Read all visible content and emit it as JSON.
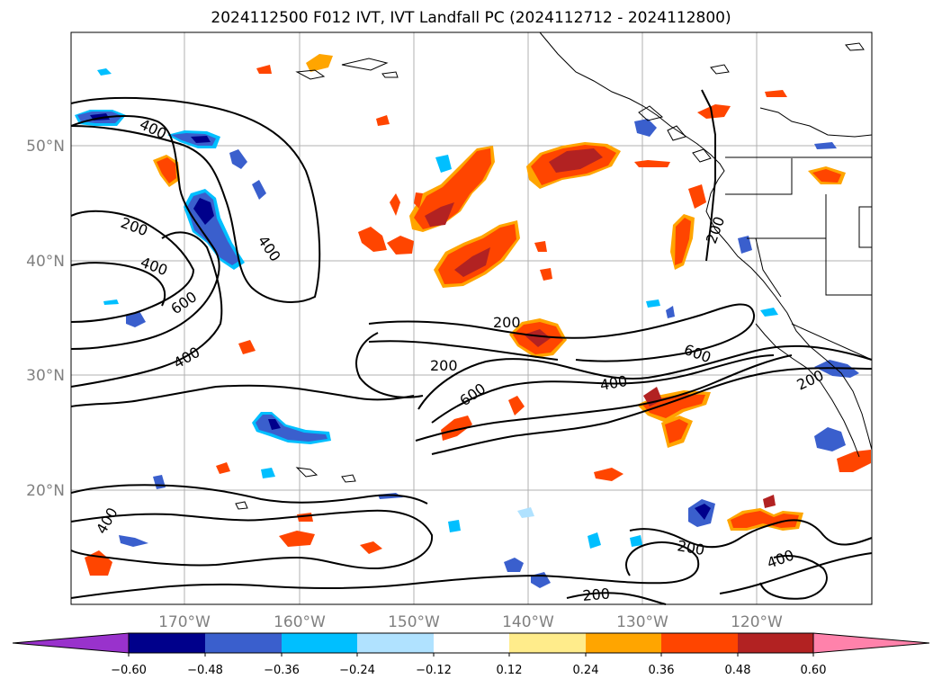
{
  "title": "2024112500 F012 IVT, IVT Landfall PC (2024112712 - 2024112800)",
  "lat_labels": [
    "50°N",
    "40°N",
    "30°N",
    "20°N"
  ],
  "lon_labels": [
    "170°W",
    "160°W",
    "150°W",
    "140°W",
    "130°W",
    "120°W"
  ],
  "contour_labels": [
    "400",
    "200",
    "400",
    "400",
    "600",
    "400",
    "200",
    "200",
    "600",
    "400",
    "600",
    "200",
    "200",
    "400",
    "200",
    "400",
    "200"
  ],
  "colorbar": {
    "ticks": [
      "−0.60",
      "−0.48",
      "−0.36",
      "−0.24",
      "−0.12",
      "0.12",
      "0.24",
      "0.36",
      "0.48",
      "0.60"
    ],
    "colors": [
      "#9932cc",
      "#00008b",
      "#3a5fcd",
      "#00bfff",
      "#b0e2ff",
      "#ffffff",
      "#ffec8b",
      "#ffa500",
      "#ff4500",
      "#b22222",
      "#ff82ab"
    ]
  },
  "colors": {
    "pos_low": "#ffec8b",
    "pos_mid": "#ffa500",
    "pos_high": "#ff4500",
    "pos_top": "#b22222",
    "neg_low": "#b0e2ff",
    "neg_mid": "#00bfff",
    "neg_high": "#3a5fcd",
    "neg_top": "#00008b",
    "grid": "#b0b0b0",
    "contour": "#000000"
  }
}
